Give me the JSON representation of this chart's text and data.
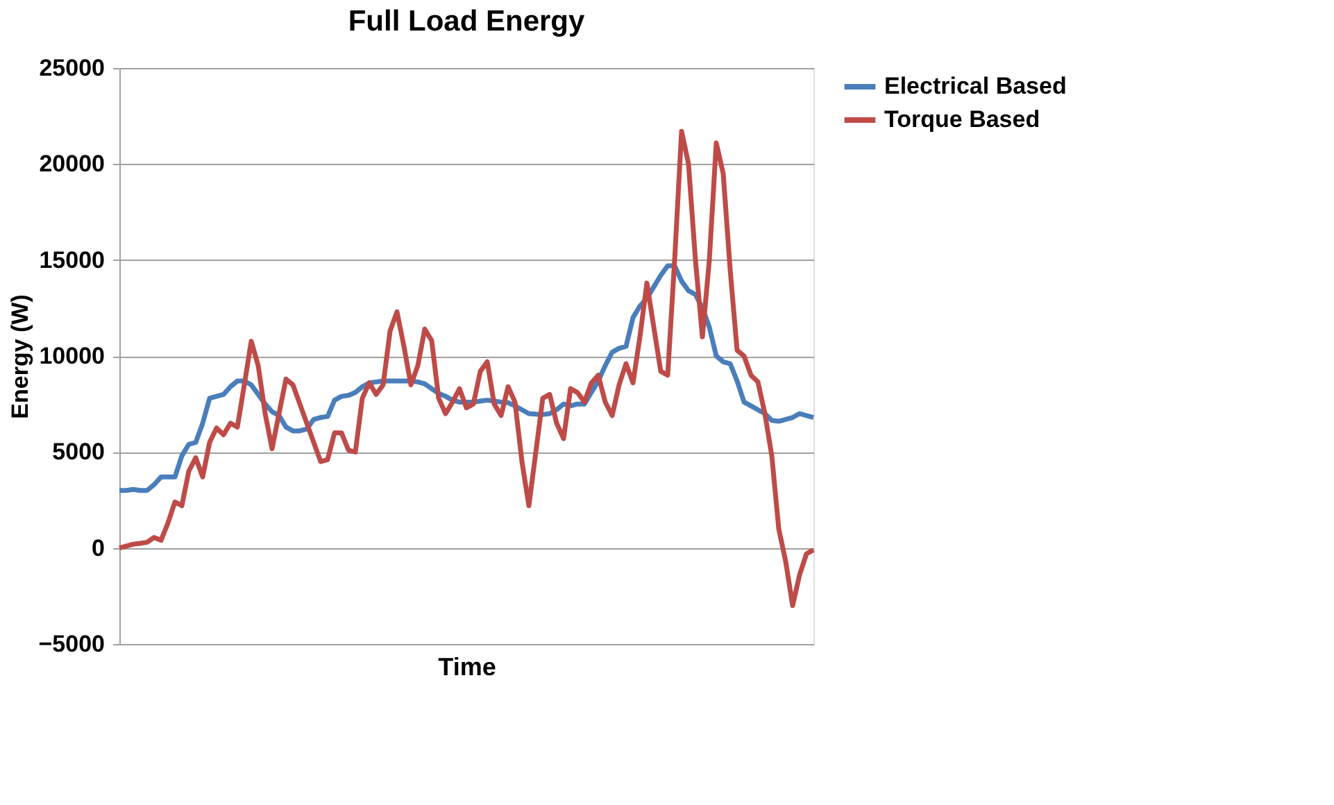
{
  "chart_data": {
    "type": "line",
    "title": "Full Load Energy",
    "xlabel": "Time",
    "ylabel": "Energy (W)",
    "categories": [
      null,
      null,
      null,
      null,
      null,
      null,
      null,
      null,
      null,
      null,
      null,
      null,
      null,
      null,
      null,
      null,
      null,
      null,
      null,
      null,
      null,
      null,
      null,
      null,
      null,
      null,
      null,
      null,
      null,
      null,
      null,
      null,
      null,
      null,
      null,
      null,
      null,
      null,
      null,
      null,
      null,
      null,
      null,
      null,
      null,
      null,
      null,
      null,
      null,
      null,
      null,
      null,
      null,
      null,
      null,
      null,
      null,
      null,
      null,
      null,
      null,
      null,
      null,
      null,
      null,
      null,
      null,
      null,
      null,
      null,
      null,
      null,
      null,
      null,
      null,
      null,
      null,
      null,
      null,
      null,
      null,
      null,
      null,
      null,
      null,
      null,
      null,
      null,
      null,
      null,
      null,
      null,
      null,
      null,
      null,
      null,
      null,
      null,
      null,
      null,
      null
    ],
    "series": [
      {
        "name": "Electrical Based",
        "color": "#4a7ebb",
        "values": [
          3000,
          3000,
          3050,
          3000,
          3000,
          3300,
          3700,
          3700,
          3700,
          4800,
          5400,
          5500,
          6500,
          7800,
          7900,
          8000,
          8400,
          8700,
          8700,
          8500,
          8000,
          7500,
          7100,
          6900,
          6300,
          6100,
          6100,
          6200,
          6700,
          6800,
          6850,
          7700,
          7900,
          7950,
          8100,
          8400,
          8600,
          8650,
          8700,
          8700,
          8700,
          8700,
          8700,
          8650,
          8550,
          8300,
          8050,
          7900,
          7700,
          7600,
          7600,
          7600,
          7650,
          7700,
          7650,
          7600,
          7570,
          7400,
          7200,
          7000,
          6970,
          6950,
          7000,
          7200,
          7500,
          7400,
          7500,
          7500,
          8100,
          8700,
          9500,
          10200,
          10400,
          10500,
          12000,
          12600,
          13000,
          13600,
          14200,
          14700,
          14700,
          13900,
          13400,
          13200,
          12500,
          11500,
          10000,
          9700,
          9600,
          8700,
          7600,
          7400,
          7200,
          7000,
          6650,
          6600,
          6700,
          6800,
          7000,
          6900,
          6800
        ]
      },
      {
        "name": "Torque Based",
        "color": "#be4b48",
        "values": [
          0,
          100,
          200,
          240,
          300,
          550,
          400,
          1300,
          2400,
          2200,
          4000,
          4700,
          3700,
          5500,
          6250,
          5900,
          6500,
          6300,
          8500,
          10770,
          9500,
          7000,
          5170,
          7000,
          8800,
          8500,
          7500,
          6500,
          5500,
          4500,
          4600,
          6000,
          6000,
          5100,
          5000,
          7800,
          8600,
          8000,
          8500,
          11300,
          12300,
          10500,
          8500,
          9500,
          11400,
          10800,
          7800,
          7000,
          7600,
          8300,
          7300,
          7500,
          9200,
          9700,
          7500,
          6900,
          8400,
          7600,
          4500,
          2200,
          5000,
          7800,
          8000,
          6500,
          5700,
          8300,
          8100,
          7600,
          8600,
          9000,
          7600,
          6900,
          8500,
          9600,
          8600,
          11000,
          13800,
          11500,
          9200,
          9000,
          15000,
          21700,
          20000,
          15000,
          11000,
          15000,
          21100,
          19500,
          14500,
          10300,
          10000,
          9000,
          8650,
          7000,
          4800,
          1000,
          -700,
          -3000,
          -1400,
          -300,
          -100
        ]
      }
    ],
    "ylim": [
      -5000,
      25000
    ],
    "yticks": [
      -5000,
      0,
      5000,
      10000,
      15000,
      20000,
      25000
    ],
    "grid": "y",
    "legend": "right",
    "tick_labels": "y",
    "line_style": "solid",
    "marker": "none"
  }
}
